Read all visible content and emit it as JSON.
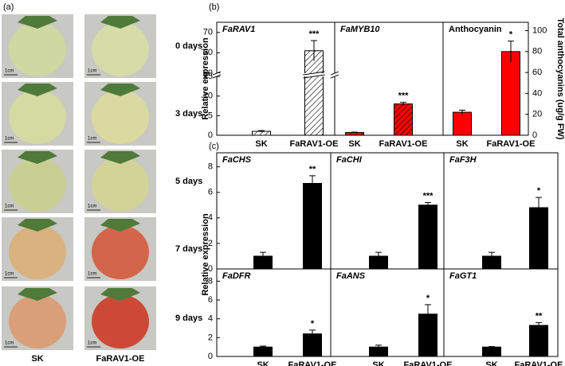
{
  "panel_labels": [
    "(a)",
    "(b)",
    "(c)"
  ],
  "panel_a": {
    "rows": [
      "0 days",
      "3 days",
      "5 days",
      "7 days",
      "9 days"
    ],
    "columns": [
      "SK",
      "FaRAV1-OE"
    ],
    "scale_label": "1cm"
  },
  "chart_data": [
    {
      "type": "bar",
      "title": "FaRAV1",
      "italic": true,
      "ylabel": "Relative expression",
      "categories": [
        "SK",
        "FaRAV1-OE"
      ],
      "values": [
        1,
        61
      ],
      "errors": [
        0.2,
        5
      ],
      "value_annotations": [
        null,
        "***"
      ],
      "color": "#ffffff",
      "hatch": true,
      "ylim": [
        0,
        75
      ],
      "ybreak": [
        15,
        50
      ],
      "yticks": [
        0,
        5,
        10,
        15,
        50,
        60,
        70
      ]
    },
    {
      "type": "bar",
      "title": "FaMYB10",
      "italic": true,
      "categories": [
        "SK",
        "FaRAV1-OE"
      ],
      "values": [
        0.7,
        8
      ],
      "errors": [
        0.1,
        0.4
      ],
      "value_annotations": [
        null,
        "***"
      ],
      "color": "#ff0000",
      "hatch": true,
      "ylim": [
        0,
        75
      ],
      "ybreak": [
        15,
        50
      ]
    },
    {
      "type": "bar",
      "title": "Anthocyanin",
      "italic": false,
      "ylabel": "Total anthocyanins (ug/g FW)",
      "categories": [
        "SK",
        "FaRAV1-OE"
      ],
      "values": [
        22,
        80
      ],
      "errors": [
        2,
        10
      ],
      "value_annotations": [
        null,
        "*"
      ],
      "color": "#ff0000",
      "hatch": false,
      "ylim": [
        0,
        108
      ],
      "yticks": [
        0,
        20,
        40,
        60,
        80,
        100
      ]
    },
    {
      "type": "bar",
      "title": "FaCHS",
      "italic": true,
      "ylabel": "Relative expression",
      "categories": [
        null,
        null
      ],
      "values": [
        1,
        6.7
      ],
      "errors": [
        0.3,
        0.6
      ],
      "value_annotations": [
        null,
        "**"
      ],
      "color": "#000000",
      "hatch": false,
      "ylim": [
        0,
        9.1
      ],
      "yticks": [
        0,
        2,
        4,
        6,
        8
      ]
    },
    {
      "type": "bar",
      "title": "FaCHI",
      "italic": true,
      "categories": [
        null,
        null
      ],
      "values": [
        1,
        5
      ],
      "errors": [
        0.3,
        0.2
      ],
      "value_annotations": [
        null,
        "***"
      ],
      "color": "#000000",
      "hatch": false,
      "ylim": [
        0,
        9.1
      ]
    },
    {
      "type": "bar",
      "title": "FaF3H",
      "italic": true,
      "categories": [
        null,
        null
      ],
      "values": [
        1,
        4.8
      ],
      "errors": [
        0.3,
        0.8
      ],
      "value_annotations": [
        null,
        "*"
      ],
      "color": "#000000",
      "hatch": false,
      "ylim": [
        0,
        9.1
      ]
    },
    {
      "type": "bar",
      "title": "FaDFR",
      "italic": true,
      "categories": [
        "SK",
        "FaRAV1-OE"
      ],
      "values": [
        1,
        2.4
      ],
      "errors": [
        0.1,
        0.4
      ],
      "value_annotations": [
        null,
        "*"
      ],
      "color": "#000000",
      "hatch": false,
      "ylim": [
        0,
        9.3
      ],
      "yticks": [
        0,
        2,
        4,
        6,
        8
      ]
    },
    {
      "type": "bar",
      "title": "FaANS",
      "italic": true,
      "categories": [
        "SK",
        "FaRAV1-OE"
      ],
      "values": [
        1,
        4.5
      ],
      "errors": [
        0.2,
        1
      ],
      "value_annotations": [
        null,
        "*"
      ],
      "color": "#000000",
      "hatch": false,
      "ylim": [
        0,
        9.3
      ]
    },
    {
      "type": "bar",
      "title": "FaGT1",
      "italic": true,
      "categories": [
        "SK",
        "FaRAV1-OE"
      ],
      "values": [
        1,
        3.3
      ],
      "errors": [
        0.05,
        0.3
      ],
      "value_annotations": [
        null,
        "**"
      ],
      "color": "#000000",
      "hatch": false,
      "ylim": [
        0,
        9.3
      ]
    }
  ]
}
